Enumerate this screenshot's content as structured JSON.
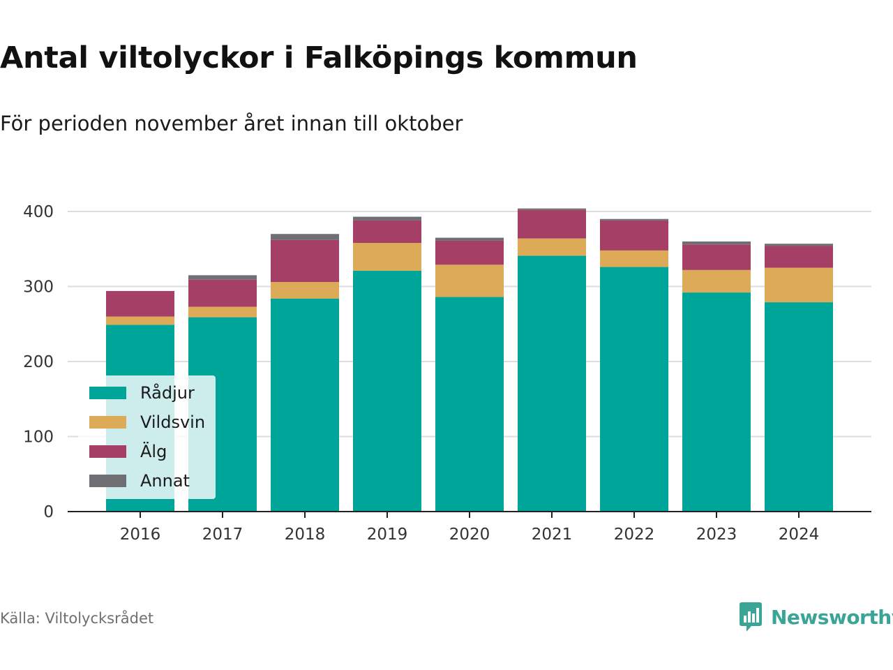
{
  "title": "Antal viltolyckor i Falköpings kommun",
  "subtitle": "För perioden november året innan till oktober",
  "source": "Källa: Viltolycksrådet",
  "brand": {
    "name": "Newsworthy",
    "icon": "newsworthy-logo-icon",
    "color": "#3aa496"
  },
  "chart_data": {
    "type": "bar",
    "stacked": true,
    "categories": [
      "2016",
      "2017",
      "2018",
      "2019",
      "2020",
      "2021",
      "2022",
      "2023",
      "2024"
    ],
    "series": [
      {
        "name": "Rådjur",
        "color": "#00a59a",
        "values": [
          249,
          259,
          284,
          321,
          286,
          341,
          326,
          292,
          279
        ]
      },
      {
        "name": "Vildsvin",
        "color": "#ddaa57",
        "values": [
          11,
          14,
          22,
          37,
          43,
          23,
          22,
          30,
          46
        ]
      },
      {
        "name": "Älg",
        "color": "#a63f66",
        "values": [
          34,
          36,
          56,
          30,
          32,
          38,
          40,
          34,
          29
        ]
      },
      {
        "name": "Annat",
        "color": "#6e6e73",
        "values": [
          0,
          6,
          8,
          5,
          4,
          2,
          2,
          4,
          3
        ]
      }
    ],
    "ylim": [
      0,
      400
    ],
    "yticks": [
      0,
      100,
      200,
      300,
      400
    ],
    "grid": true,
    "legend_position": "bottom-left"
  }
}
